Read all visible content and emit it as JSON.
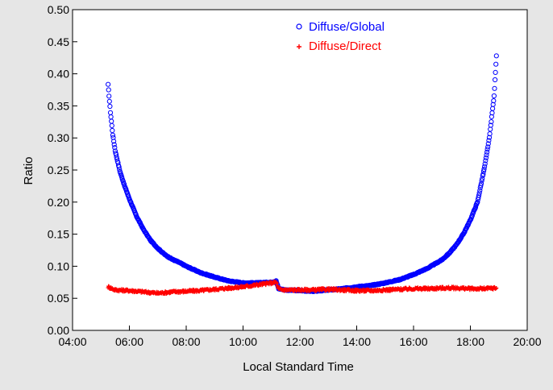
{
  "chart_data": {
    "type": "scatter",
    "title": "",
    "xlabel": "Local Standard Time",
    "ylabel": "Ratio",
    "xlim": [
      "04:00",
      "20:00"
    ],
    "ylim": [
      0.0,
      0.5
    ],
    "x_ticks": [
      "04:00",
      "06:00",
      "08:00",
      "10:00",
      "12:00",
      "14:00",
      "16:00",
      "18:00",
      "20:00"
    ],
    "y_ticks": [
      "0.00",
      "0.05",
      "0.10",
      "0.15",
      "0.20",
      "0.25",
      "0.30",
      "0.35",
      "0.40",
      "0.45",
      "0.50"
    ],
    "grid": false,
    "legend_position": "top-center",
    "series": [
      {
        "name": "Diffuse/Global",
        "marker": "circle",
        "color": "#0000ff",
        "x": [
          "05:15",
          "05:20",
          "05:25",
          "05:30",
          "05:40",
          "05:50",
          "06:00",
          "06:15",
          "06:30",
          "06:45",
          "07:00",
          "07:15",
          "07:30",
          "07:45",
          "08:00",
          "08:30",
          "09:00",
          "09:30",
          "10:00",
          "10:30",
          "11:00",
          "11:10",
          "11:15",
          "11:30",
          "12:00",
          "12:30",
          "13:00",
          "13:30",
          "14:00",
          "14:30",
          "15:00",
          "15:30",
          "16:00",
          "16:30",
          "17:00",
          "17:15",
          "17:30",
          "17:45",
          "18:00",
          "18:15",
          "18:30",
          "18:40",
          "18:50",
          "18:55"
        ],
        "y": [
          0.383,
          0.34,
          0.305,
          0.28,
          0.248,
          0.225,
          0.205,
          0.178,
          0.157,
          0.14,
          0.128,
          0.118,
          0.111,
          0.106,
          0.1,
          0.09,
          0.083,
          0.077,
          0.074,
          0.074,
          0.075,
          0.077,
          0.065,
          0.063,
          0.062,
          0.061,
          0.063,
          0.065,
          0.068,
          0.07,
          0.074,
          0.079,
          0.087,
          0.097,
          0.11,
          0.12,
          0.133,
          0.15,
          0.172,
          0.2,
          0.255,
          0.3,
          0.365,
          0.428
        ]
      },
      {
        "name": "Diffuse/Direct",
        "marker": "plus",
        "color": "#ff0000",
        "x": [
          "05:15",
          "05:30",
          "06:00",
          "06:30",
          "07:00",
          "07:30",
          "08:00",
          "08:30",
          "09:00",
          "09:30",
          "10:00",
          "10:30",
          "11:00",
          "11:10",
          "11:15",
          "11:30",
          "12:00",
          "12:30",
          "13:00",
          "13:30",
          "14:00",
          "14:30",
          "15:00",
          "15:30",
          "16:00",
          "16:30",
          "17:00",
          "17:30",
          "18:00",
          "18:30",
          "18:55"
        ],
        "y": [
          0.068,
          0.063,
          0.062,
          0.06,
          0.058,
          0.06,
          0.061,
          0.062,
          0.064,
          0.066,
          0.068,
          0.071,
          0.074,
          0.075,
          0.064,
          0.063,
          0.063,
          0.063,
          0.064,
          0.063,
          0.062,
          0.062,
          0.063,
          0.064,
          0.065,
          0.065,
          0.066,
          0.066,
          0.065,
          0.065,
          0.066
        ]
      }
    ]
  }
}
